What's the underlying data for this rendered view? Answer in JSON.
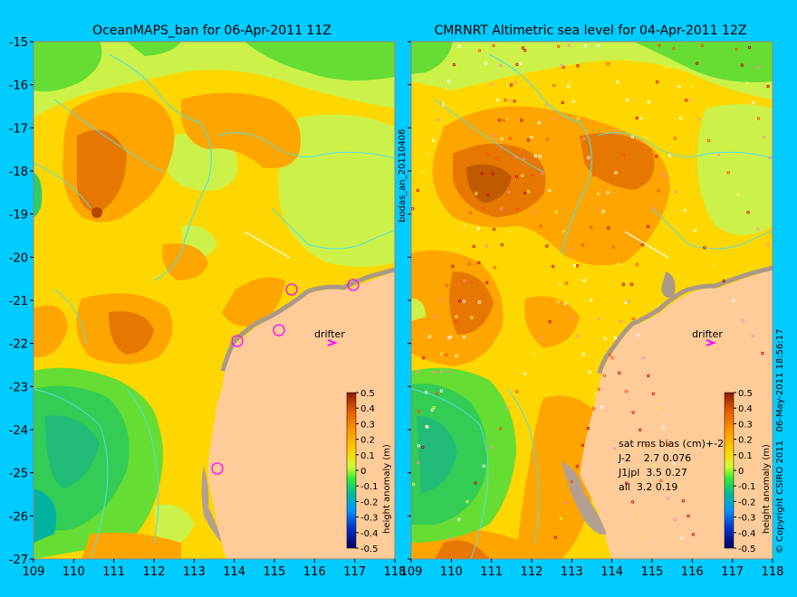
{
  "left_panel": {
    "title": "OceanMAPS_ban for 06-Apr-2011 11Z",
    "side_label": "bodas_an_20110406",
    "drifter_label": "drifter",
    "colorbar_label": "height anomaly (m)"
  },
  "right_panel": {
    "title": "CMRNRT Altimetric sea level  for 04-Apr-2011 12Z",
    "drifter_label": "drifter",
    "colorbar_label": "height anomaly (m)",
    "stats": {
      "header": "sat rms bias (cm)+-2σ",
      "rows": [
        "J-2    2.7 0.076",
        "J1jpl  3.5 0.27",
        "all  3.2 0.19"
      ]
    }
  },
  "copyright": "© Copyright CSIRO 2011   06-May-2011 18:56:17",
  "lat_ticks": [
    "-15",
    "-16",
    "-17",
    "-18",
    "-19",
    "-20",
    "-21",
    "-22",
    "-23",
    "-24",
    "-25",
    "-26",
    "-27"
  ],
  "lon_ticks": [
    "109",
    "110",
    "111",
    "112",
    "113",
    "114",
    "115",
    "116",
    "117",
    "118"
  ],
  "colorbar_ticks": [
    "0.5",
    "0.4",
    "0.3",
    "0.2",
    "0.1",
    "0",
    "-0.1",
    "-0.2",
    "-0.3",
    "-0.4",
    "-0.5"
  ],
  "colors": {
    "background": "#00ccff",
    "land": "#ffcc99",
    "coast": "#55dddd",
    "drifter": "#ff00ff"
  }
}
